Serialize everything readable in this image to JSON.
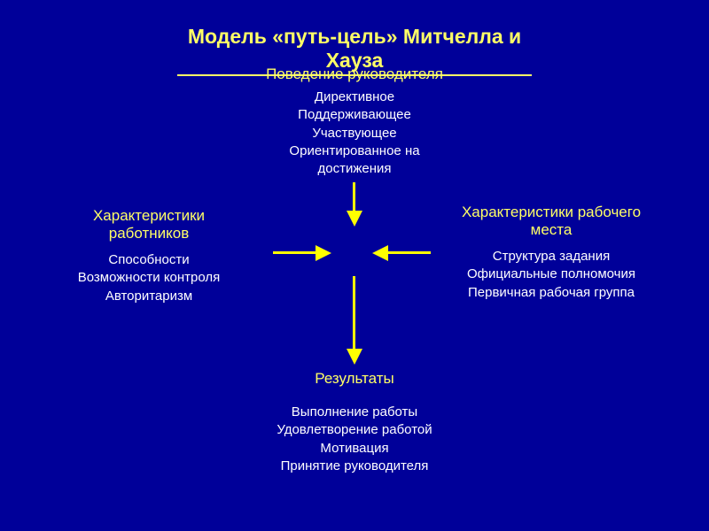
{
  "title": "Модель «путь-цель» Митчелла и Хауза",
  "top": {
    "heading": "Поведение руководителя",
    "items": [
      "Директивное",
      "Поддерживающее",
      "Участвующее",
      "Ориентированное на",
      "достижения"
    ]
  },
  "left": {
    "heading_line1": "Характеристики",
    "heading_line2": "работников",
    "items": [
      "Способности",
      "Возможности контроля",
      "Авторитаризм"
    ]
  },
  "right": {
    "heading_line1": "Характеристики рабочего",
    "heading_line2": "места",
    "items": [
      "Структура задания",
      "Официальные полномочия",
      "Первичная рабочая группа"
    ]
  },
  "results": {
    "heading": "Результаты",
    "items": [
      "Выполнение работы",
      "Удовлетворение работой",
      "Мотивация",
      "Принятие руководителя"
    ]
  },
  "style": {
    "bg_color": "#000099",
    "heading_color": "#ffff66",
    "text_color": "#ffffff",
    "arrow_color": "#ffff00"
  },
  "arrows": [
    {
      "from": "top",
      "to": "center",
      "direction": "down"
    },
    {
      "from": "left",
      "to": "center",
      "direction": "right"
    },
    {
      "from": "right",
      "to": "center",
      "direction": "left"
    },
    {
      "from": "center",
      "to": "results",
      "direction": "down"
    }
  ]
}
